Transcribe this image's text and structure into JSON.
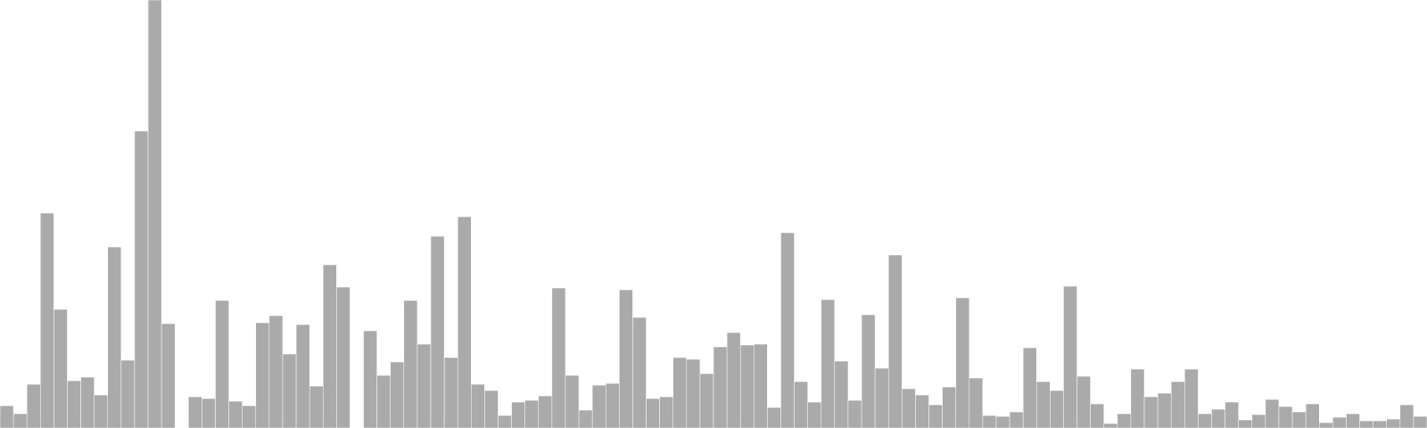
{
  "chart_data": {
    "type": "bar",
    "title": "",
    "xlabel": "",
    "ylabel": "",
    "ylim": [
      0,
      480
    ],
    "grid": false,
    "legend": "none",
    "bar_color": "#aaaaaa",
    "background": "#ffffff",
    "values": [
      25,
      16,
      49,
      241,
      133,
      53,
      57,
      37,
      203,
      76,
      333,
      480,
      117,
      0,
      35,
      33,
      143,
      30,
      25,
      118,
      126,
      83,
      116,
      47,
      183,
      158,
      0,
      109,
      59,
      74,
      143,
      94,
      215,
      79,
      237,
      49,
      42,
      14,
      29,
      31,
      36,
      157,
      59,
      20,
      48,
      50,
      155,
      124,
      33,
      35,
      79,
      77,
      61,
      91,
      107,
      93,
      94,
      23,
      219,
      52,
      29,
      144,
      75,
      31,
      127,
      67,
      194,
      44,
      37,
      26,
      46,
      146,
      56,
      14,
      13,
      18,
      90,
      52,
      42,
      159,
      58,
      27,
      5,
      16,
      66,
      35,
      39,
      52,
      66,
      16,
      21,
      29,
      9,
      15,
      32,
      24,
      18,
      27,
      6,
      12,
      16,
      8,
      8,
      10,
      26,
      13
    ]
  }
}
